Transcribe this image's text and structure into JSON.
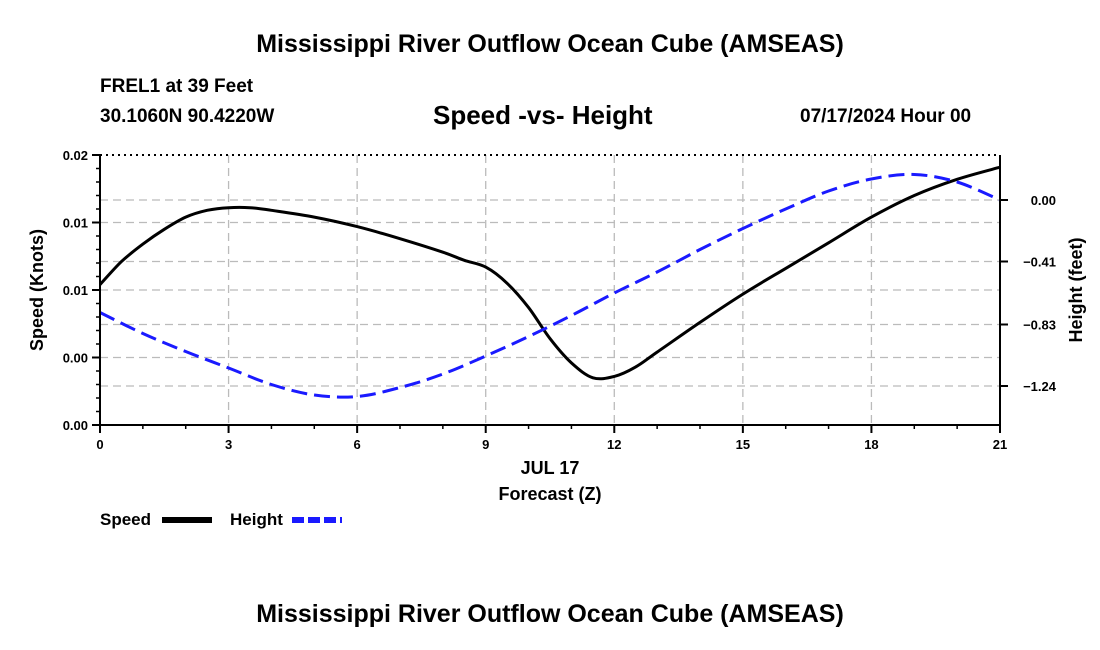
{
  "header": {
    "main_title": "Mississippi River Outflow Ocean Cube (AMSEAS)",
    "station": "FREL1 at 39 Feet",
    "coords": "30.1060N  90.4220W",
    "subtitle": "Speed -vs- Height",
    "datetime": "07/17/2024 Hour 00",
    "bottom_title": "Mississippi River Outflow Ocean Cube (AMSEAS)"
  },
  "chart_data": {
    "type": "line",
    "title": "Speed -vs- Height",
    "xlabel": "Forecast (Z)",
    "x_date_label": "JUL 17",
    "ylabel": "Speed (Knots)",
    "y2label": "Height (feet)",
    "xlim": [
      0,
      21
    ],
    "ylim": [
      0,
      0.02
    ],
    "y2lim": [
      -1.5,
      0.3
    ],
    "x_ticks": [
      0,
      3,
      6,
      9,
      12,
      15,
      18,
      21
    ],
    "x_tick_labels": [
      "0",
      "3",
      "6",
      "9",
      "12",
      "15",
      "18",
      "21"
    ],
    "y_ticks": [
      0,
      0.005,
      0.01,
      0.015,
      0.02
    ],
    "y_tick_labels": [
      "0.00",
      "0.00",
      "0.01",
      "0.01",
      "0.02"
    ],
    "y2_ticks": [
      -1.24,
      -0.83,
      -0.41,
      0.0
    ],
    "y2_tick_labels": [
      "−1.24",
      "−0.83",
      "−0.41",
      "0.00"
    ],
    "grid": true,
    "series": [
      {
        "name": "Speed",
        "axis": "left",
        "color": "#000000",
        "style": "solid",
        "x": [
          0,
          0.5,
          1,
          1.5,
          2,
          2.5,
          3,
          3.5,
          4,
          5,
          6,
          7,
          8,
          8.5,
          9,
          9.5,
          10,
          10.5,
          11,
          11.5,
          12,
          12.5,
          13,
          14,
          15,
          16,
          17,
          18,
          19,
          20,
          21
        ],
        "values": [
          0.0104,
          0.0121,
          0.0134,
          0.0145,
          0.0154,
          0.0159,
          0.0161,
          0.0161,
          0.0159,
          0.0154,
          0.0147,
          0.0138,
          0.0128,
          0.0122,
          0.0117,
          0.0105,
          0.0087,
          0.0064,
          0.0046,
          0.0035,
          0.0036,
          0.0043,
          0.0054,
          0.0076,
          0.0097,
          0.0116,
          0.0135,
          0.0154,
          0.017,
          0.0182,
          0.0191
        ]
      },
      {
        "name": "Height",
        "axis": "right",
        "color": "#1a1aff",
        "style": "dashed",
        "x": [
          0,
          1,
          2,
          3,
          4,
          5,
          6,
          7,
          8,
          9,
          10,
          11,
          12,
          13,
          14,
          15,
          16,
          17,
          18,
          19,
          20,
          21
        ],
        "values": [
          -0.75,
          -0.89,
          -1.01,
          -1.12,
          -1.23,
          -1.3,
          -1.31,
          -1.25,
          -1.16,
          -1.04,
          -0.91,
          -0.77,
          -0.62,
          -0.48,
          -0.33,
          -0.19,
          -0.06,
          0.06,
          0.14,
          0.17,
          0.12,
          0.0
        ]
      }
    ],
    "legend": [
      {
        "name": "Speed",
        "color": "#000000",
        "style": "solid"
      },
      {
        "name": "Height",
        "color": "#1a1aff",
        "style": "dashed"
      }
    ]
  }
}
